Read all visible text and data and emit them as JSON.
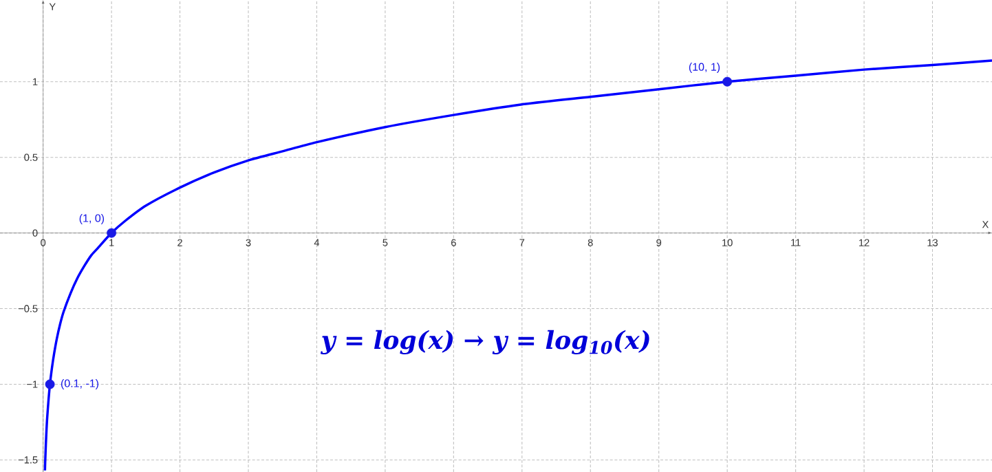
{
  "chart_data": {
    "type": "line",
    "xlabel": "X",
    "ylabel": "Y",
    "xlim": [
      -0.63,
      13.87
    ],
    "ylim": [
      -1.58,
      1.54
    ],
    "xticks": [
      0,
      1,
      2,
      3,
      4,
      5,
      6,
      7,
      8,
      9,
      10,
      11,
      12,
      13
    ],
    "yticks": [
      {
        "value": -1.5,
        "label": "−1.5"
      },
      {
        "value": -1,
        "label": "−1"
      },
      {
        "value": -0.5,
        "label": "−0.5"
      },
      0,
      0.5,
      1
    ],
    "grid": true,
    "series": [
      {
        "color": "#0000ff",
        "x": [
          0.027,
          0.03,
          0.04,
          0.05,
          0.06,
          0.08,
          0.1,
          0.13,
          0.16,
          0.2,
          0.25,
          0.3,
          0.4,
          0.5,
          0.6,
          0.7,
          0.8,
          1,
          1.2,
          1.5,
          2,
          2.5,
          3,
          3.5,
          4,
          5,
          6,
          7,
          8,
          9,
          10,
          11,
          12,
          13,
          13.87
        ],
        "values": [
          -1.57,
          -1.52,
          -1.4,
          -1.3,
          -1.22,
          -1.1,
          -1,
          -0.89,
          -0.8,
          -0.7,
          -0.6,
          -0.52,
          -0.4,
          -0.3,
          -0.22,
          -0.15,
          -0.1,
          0,
          0.08,
          0.18,
          0.3,
          0.4,
          0.48,
          0.54,
          0.6,
          0.7,
          0.78,
          0.85,
          0.9,
          0.95,
          1,
          1.04,
          1.08,
          1.11,
          1.14
        ]
      },
      {
        "type": "scatter",
        "color": "#1a1ae6",
        "marker": "circle",
        "x": [
          0.1,
          1,
          10
        ],
        "values": [
          -1,
          0,
          1
        ],
        "value_labels": [
          "(0.1, -1)",
          "(1, 0)",
          "(10, 1)"
        ]
      }
    ],
    "annotations": [
      "y = log(x) → y = log$_{10}$(x)"
    ]
  }
}
